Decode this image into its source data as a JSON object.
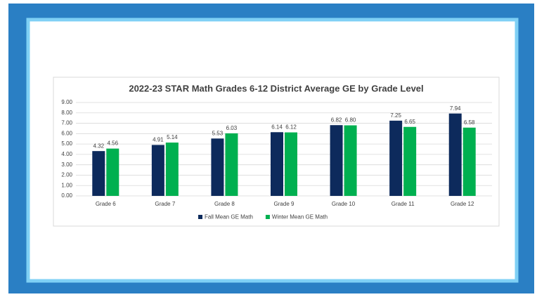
{
  "chart_data": {
    "type": "bar",
    "title": "2022-23 STAR Math Grades 6-12 District Average GE by Grade Level",
    "categories": [
      "Grade 6",
      "Grade 7",
      "Grade 8",
      "Grade 9",
      "Grade 10",
      "Grade 11",
      "Grade 12"
    ],
    "series": [
      {
        "name": "Fall Mean GE Math",
        "color": "#0d2a5c",
        "values": [
          4.32,
          4.91,
          5.53,
          6.14,
          6.82,
          7.25,
          7.94
        ],
        "value_labels": [
          "4.32",
          "4.91",
          "5.53",
          "6.14",
          "6.82",
          "7.25",
          "7.94"
        ]
      },
      {
        "name": "Winter Mean GE Math",
        "color": "#00b050",
        "values": [
          4.56,
          5.14,
          6.03,
          6.12,
          6.8,
          6.65,
          6.58
        ],
        "value_labels": [
          "4.56",
          "5.14",
          "6.03",
          "6.12",
          "6.80",
          "6.65",
          "6.58"
        ]
      }
    ],
    "ylim": [
      0,
      9
    ],
    "yticks": [
      {
        "value": 0,
        "label": "0.00"
      },
      {
        "value": 1,
        "label": "1.00"
      },
      {
        "value": 2,
        "label": "2.00"
      },
      {
        "value": 3,
        "label": "3.00"
      },
      {
        "value": 4,
        "label": "4.00"
      },
      {
        "value": 5,
        "label": "5.00"
      },
      {
        "value": 6,
        "label": "6.00"
      },
      {
        "value": 7,
        "label": "7.00"
      },
      {
        "value": 8,
        "label": "8.00"
      },
      {
        "value": 9,
        "label": "9.00"
      }
    ],
    "grid": true,
    "legend": "bottom"
  }
}
